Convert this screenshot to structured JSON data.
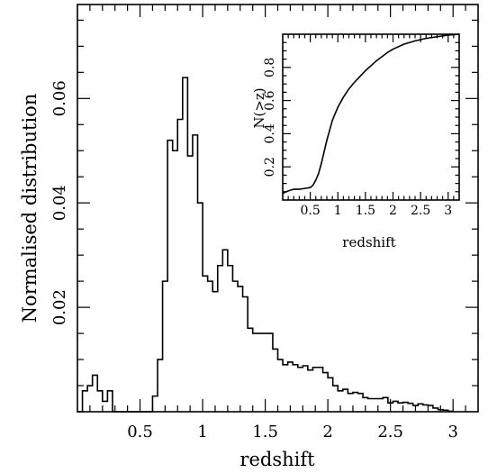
{
  "chart_data": [
    {
      "type": "histogram",
      "xlabel": "redshift",
      "ylabel": "Normalised distribution",
      "xlim": [
        0,
        3.2
      ],
      "ylim": [
        0,
        0.078
      ],
      "xticks": [
        0.5,
        1,
        1.5,
        2,
        2.5,
        3
      ],
      "xtick_labels": [
        "0.5",
        "1",
        "1.5",
        "2",
        "2.5",
        "3"
      ],
      "yticks": [
        0.02,
        0.04,
        0.06
      ],
      "ytick_labels": [
        "0.02",
        "0.04",
        "0.06"
      ],
      "bin_edges": [
        0.0,
        0.04,
        0.08,
        0.12,
        0.16,
        0.2,
        0.24,
        0.28,
        0.32,
        0.36,
        0.4,
        0.44,
        0.48,
        0.52,
        0.56,
        0.6,
        0.64,
        0.68,
        0.72,
        0.76,
        0.8,
        0.84,
        0.88,
        0.92,
        0.96,
        1.0,
        1.04,
        1.08,
        1.12,
        1.16,
        1.2,
        1.24,
        1.28,
        1.32,
        1.36,
        1.4,
        1.44,
        1.48,
        1.52,
        1.56,
        1.6,
        1.64,
        1.68,
        1.72,
        1.76,
        1.8,
        1.84,
        1.88,
        1.92,
        1.96,
        2.0,
        2.04,
        2.08,
        2.12,
        2.16,
        2.2,
        2.24,
        2.28,
        2.32,
        2.36,
        2.4,
        2.44,
        2.48,
        2.52,
        2.56,
        2.6,
        2.64,
        2.68,
        2.72,
        2.76,
        2.8,
        2.84,
        2.88,
        2.92,
        2.96,
        3.0
      ],
      "values": [
        0.0,
        0.004,
        0.005,
        0.007,
        0.004,
        0.002,
        0.004,
        0.0,
        0.0,
        0.0,
        0.0,
        0.0,
        0.0,
        0.0,
        0.0,
        0.003,
        0.01,
        0.025,
        0.052,
        0.05,
        0.056,
        0.064,
        0.049,
        0.053,
        0.04,
        0.026,
        0.025,
        0.023,
        0.028,
        0.031,
        0.028,
        0.025,
        0.024,
        0.022,
        0.016,
        0.015,
        0.015,
        0.015,
        0.015,
        0.012,
        0.01,
        0.009,
        0.0095,
        0.009,
        0.0085,
        0.0088,
        0.008,
        0.0085,
        0.0085,
        0.0075,
        0.0065,
        0.005,
        0.004,
        0.0043,
        0.0035,
        0.0037,
        0.0035,
        0.0027,
        0.0025,
        0.0025,
        0.0025,
        0.0027,
        0.0017,
        0.002,
        0.0017,
        0.0018,
        0.0016,
        0.0012,
        0.0015,
        0.0013,
        0.0012,
        0.0007,
        0.0004,
        0.0003,
        0.0001
      ]
    },
    {
      "type": "line",
      "inset": true,
      "xlabel": "redshift",
      "ylabel": "N(>z)",
      "xlim": [
        0,
        3.2
      ],
      "ylim": [
        0,
        1.0
      ],
      "xticks": [
        0.5,
        1,
        1.5,
        2,
        2.5,
        3
      ],
      "xtick_labels": [
        "0.5",
        "1",
        "1.5",
        "2",
        "2.5",
        "3"
      ],
      "yticks": [
        0.2,
        0.4,
        0.6,
        0.8
      ],
      "ytick_labels": [
        "0.2",
        "0.4",
        "0.6",
        "0.8"
      ],
      "x": [
        0.0,
        0.1,
        0.2,
        0.3,
        0.4,
        0.5,
        0.55,
        0.6,
        0.65,
        0.7,
        0.75,
        0.8,
        0.85,
        0.9,
        0.95,
        1.0,
        1.1,
        1.2,
        1.3,
        1.4,
        1.5,
        1.6,
        1.7,
        1.8,
        1.9,
        2.0,
        2.2,
        2.4,
        2.6,
        2.8,
        3.0,
        3.2
      ],
      "y": [
        0.04,
        0.055,
        0.065,
        0.065,
        0.07,
        0.075,
        0.09,
        0.12,
        0.16,
        0.22,
        0.29,
        0.36,
        0.42,
        0.48,
        0.52,
        0.56,
        0.62,
        0.67,
        0.71,
        0.745,
        0.78,
        0.81,
        0.84,
        0.865,
        0.89,
        0.91,
        0.94,
        0.96,
        0.975,
        0.985,
        0.995,
        1.0
      ]
    }
  ]
}
